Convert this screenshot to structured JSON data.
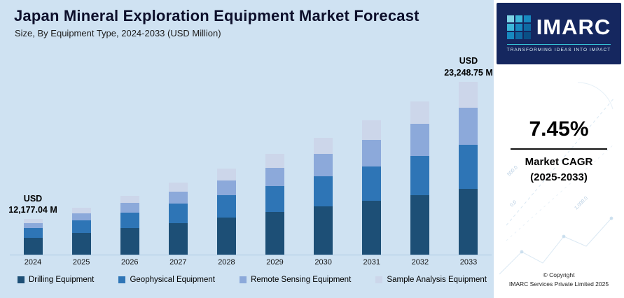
{
  "header": {
    "title": "Japan Mineral Exploration Equipment Market Forecast",
    "subtitle": "Size, By Equipment Type, 2024-2033 (USD Million)"
  },
  "chart_data": {
    "type": "bar",
    "stacked": true,
    "title": "Japan Mineral Exploration Equipment Market Forecast",
    "subtitle": "Size, By Equipment Type, 2024-2033 (USD Million)",
    "units": "USD Million",
    "legend_position": "bottom",
    "y_axis_visible": false,
    "categories": [
      "2024",
      "2025",
      "2026",
      "2027",
      "2028",
      "2029",
      "2030",
      "2031",
      "2032",
      "2033"
    ],
    "totals": [
      12177.04,
      13084,
      14059,
      15106,
      16232,
      17441,
      18740,
      20136,
      21636,
      23248.75
    ],
    "series": [
      {
        "name": "Drilling Equipment",
        "color": "#1d4f76",
        "values": [
          5723.2,
          6019,
          6327,
          6647,
          6980,
          7325,
          7683,
          8054,
          8438,
          8834.5
        ]
      },
      {
        "name": "Geophysical Equipment",
        "color": "#2e75b6",
        "values": [
          3287.8,
          3511,
          3749,
          4003,
          4274,
          4564,
          4872,
          5201,
          5554,
          5928.4
        ]
      },
      {
        "name": "Remote Sensing Equipment",
        "color": "#8ca9da",
        "values": [
          1704.8,
          1940,
          2203,
          2492,
          2813,
          3169,
          3561,
          3993,
          4472,
          4998.5
        ]
      },
      {
        "name": "Sample Analysis Equipment",
        "color": "#ccd6ea",
        "values": [
          1461.2,
          1613,
          1781,
          1964,
          2164,
          2384,
          2624,
          2886,
          3174,
          3487.3
        ]
      }
    ],
    "annotations": [
      {
        "category": "2024",
        "lines": [
          "USD",
          "12,177.04 M"
        ]
      },
      {
        "category": "2033",
        "lines": [
          "USD",
          "23,248.75 M"
        ]
      }
    ]
  },
  "panel": {
    "logo_text": "IMARC",
    "logo_tagline": "TRANSFORMING IDEAS INTO IMPACT",
    "cagr_value": "7.45%",
    "cagr_label_line1": "Market CAGR",
    "cagr_label_line2": "(2025-2033)",
    "copyright_line1": "© Copyright",
    "copyright_line2": "IMARC Services Private Limited 2025",
    "brand_navy": "#15275f",
    "accent_teal": "#35c4d7"
  },
  "colors": {
    "background": "#cfe2f2",
    "baseline": "#aac8e1",
    "title_text": "#0d0f2b"
  },
  "decor_labels": [
    "0.0",
    "500.0",
    "1,000.0"
  ]
}
